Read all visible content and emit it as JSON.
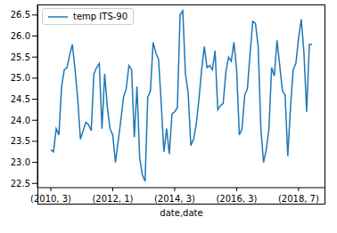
{
  "chart_data": {
    "type": "line",
    "x_label": "date,date",
    "legend": "upper left",
    "categories": [
      "(2010, 3)",
      null,
      null,
      null,
      null,
      null,
      null,
      null,
      null,
      null,
      null,
      null,
      null,
      null,
      null,
      null,
      null,
      null,
      null,
      null,
      null,
      null,
      null,
      "(2012, 1)",
      null,
      null,
      null,
      null,
      null,
      null,
      null,
      null,
      null,
      null,
      null,
      null,
      null,
      null,
      null,
      null,
      null,
      null,
      null,
      null,
      null,
      null,
      "(2014, 3)",
      null,
      null,
      null,
      null,
      null,
      null,
      null,
      null,
      null,
      null,
      null,
      null,
      null,
      null,
      null,
      null,
      null,
      null,
      null,
      null,
      null,
      null,
      "(2016, 3)",
      null,
      null,
      null,
      null,
      null,
      null,
      null,
      null,
      null,
      null,
      null,
      null,
      null,
      null,
      null,
      null,
      null,
      null,
      null,
      null,
      null,
      null,
      "(2018, 7)",
      null,
      null,
      null,
      null,
      null
    ],
    "series": [
      {
        "name": "temp ITS-90",
        "color": "#1f77b4",
        "values": [
          23.3,
          23.25,
          23.8,
          23.65,
          24.8,
          25.2,
          25.25,
          25.55,
          25.8,
          25.2,
          24.5,
          23.55,
          23.75,
          23.95,
          23.9,
          23.75,
          25.1,
          25.25,
          25.35,
          23.8,
          25.1,
          24.3,
          23.8,
          23.65,
          23.0,
          23.5,
          24.0,
          24.55,
          24.75,
          25.3,
          25.2,
          23.6,
          24.8,
          23.1,
          22.7,
          22.55,
          24.55,
          24.7,
          25.85,
          25.6,
          25.45,
          24.4,
          23.25,
          23.8,
          23.2,
          24.15,
          24.2,
          24.3,
          26.5,
          26.6,
          25.1,
          24.65,
          23.4,
          23.55,
          23.9,
          24.5,
          25.2,
          25.75,
          25.25,
          25.3,
          25.2,
          25.65,
          24.25,
          24.35,
          24.4,
          25.15,
          25.5,
          25.4,
          25.85,
          25.2,
          23.65,
          23.8,
          24.6,
          24.75,
          25.6,
          26.35,
          26.3,
          25.75,
          23.8,
          23.0,
          23.3,
          23.8,
          25.25,
          25.05,
          25.9,
          25.3,
          24.7,
          24.6,
          23.15,
          24.3,
          25.2,
          25.35,
          25.95,
          26.4,
          25.6,
          24.2,
          25.8,
          25.8
        ]
      }
    ],
    "ylim": [
      22.4,
      26.75
    ],
    "yticks": [
      22.5,
      {
        "value": 23,
        "label": "23.0"
      },
      23.5,
      {
        "value": 24,
        "label": "24.0"
      },
      24.5,
      {
        "value": 25,
        "label": "25.0"
      },
      25.5,
      {
        "value": 26,
        "label": "26.0"
      },
      26.5
    ]
  }
}
